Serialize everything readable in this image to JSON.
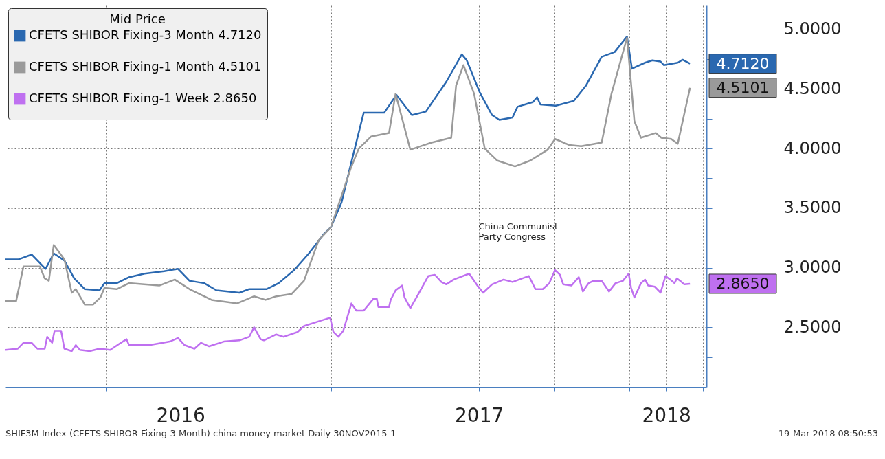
{
  "chart_data": {
    "type": "line",
    "legend_title": "Mid Price",
    "legend": "top left",
    "grid": true,
    "xlim": [
      "2015-11-30",
      "2018-04-05"
    ],
    "xticks": [
      {
        "value": "2016-01-01",
        "label": null
      },
      {
        "value": "2016-04-01",
        "label": null
      },
      {
        "value": "2016-07-01",
        "label": "2016"
      },
      {
        "value": "2016-10-01",
        "label": null
      },
      {
        "value": "2017-01-01",
        "label": null
      },
      {
        "value": "2017-04-01",
        "label": null
      },
      {
        "value": "2017-07-01",
        "label": "2017"
      },
      {
        "value": "2017-10-01",
        "label": null
      },
      {
        "value": "2018-01-01",
        "label": null
      },
      {
        "value": "2018-02-15",
        "label": "2018"
      },
      {
        "value": "2018-04-01",
        "label": null
      }
    ],
    "ylim": [
      2.0,
      5.2
    ],
    "yticks": [
      {
        "value": 2.25,
        "label": null
      },
      {
        "value": 2.5,
        "label": "2.5000"
      },
      {
        "value": 2.75,
        "label": null
      },
      {
        "value": 3.0,
        "label": "3.0000"
      },
      {
        "value": 3.25,
        "label": null
      },
      {
        "value": 3.5,
        "label": "3.5000"
      },
      {
        "value": 3.75,
        "label": null
      },
      {
        "value": 4.0,
        "label": "4.0000"
      },
      {
        "value": 4.25,
        "label": null
      },
      {
        "value": 4.5,
        "label": "4.5000"
      },
      {
        "value": 4.75,
        "label": null
      },
      {
        "value": 5.0,
        "label": "5.0000"
      }
    ],
    "series": [
      {
        "name": "CFETS SHIBOR Fixing-3 Month 4.7120",
        "color": "#2a68b0",
        "value_labels": [
          null,
          null,
          null,
          null,
          null,
          null,
          null,
          null,
          null,
          null,
          null,
          null,
          null,
          null,
          null,
          null,
          null,
          null,
          null,
          null,
          null,
          null,
          null,
          null,
          null,
          null,
          null,
          null,
          null,
          null,
          null,
          null,
          null,
          null,
          null,
          null,
          null,
          null,
          null,
          null,
          null,
          null,
          null,
          null,
          null,
          null,
          null,
          null,
          null,
          null,
          null,
          null,
          null,
          null,
          null,
          null,
          null,
          "4.7120"
        ],
        "x": [
          "2015-11-30",
          "2015-12-16",
          "2016-01-01",
          "2016-01-18",
          "2016-01-28",
          "2016-02-10",
          "2016-02-22",
          "2016-03-06",
          "2016-03-24",
          "2016-03-30",
          "2016-04-14",
          "2016-04-29",
          "2016-05-18",
          "2016-06-11",
          "2016-06-28",
          "2016-07-12",
          "2016-07-30",
          "2016-08-14",
          "2016-09-11",
          "2016-09-23",
          "2016-10-14",
          "2016-10-29",
          "2016-11-17",
          "2016-12-05",
          "2016-12-23",
          "2017-01-01",
          "2017-01-14",
          "2017-01-25",
          "2017-02-10",
          "2017-03-07",
          "2017-03-22",
          "2017-04-10",
          "2017-04-27",
          "2017-05-22",
          "2017-06-10",
          "2017-06-16",
          "2017-07-02",
          "2017-07-17",
          "2017-07-26",
          "2017-08-11",
          "2017-08-17",
          "2017-09-05",
          "2017-09-10",
          "2017-09-14",
          "2017-10-03",
          "2017-10-25",
          "2017-11-09",
          "2017-11-28",
          "2017-12-14",
          "2017-12-29",
          "2018-01-04",
          "2018-01-20",
          "2018-01-29",
          "2018-02-08",
          "2018-02-12",
          "2018-03-01",
          "2018-03-07",
          "2018-03-16"
        ],
        "values": [
          3.07,
          3.07,
          3.11,
          2.99,
          3.12,
          3.06,
          2.91,
          2.82,
          2.81,
          2.87,
          2.87,
          2.92,
          2.95,
          2.97,
          2.99,
          2.89,
          2.87,
          2.81,
          2.79,
          2.82,
          2.82,
          2.87,
          2.98,
          3.12,
          3.28,
          3.34,
          3.55,
          3.86,
          4.3,
          4.3,
          4.45,
          4.28,
          4.31,
          4.56,
          4.79,
          4.74,
          4.47,
          4.28,
          4.24,
          4.26,
          4.35,
          4.39,
          4.43,
          4.37,
          4.36,
          4.4,
          4.53,
          4.77,
          4.81,
          4.94,
          4.67,
          4.72,
          4.74,
          4.73,
          4.7,
          4.72,
          4.745,
          4.712
        ]
      },
      {
        "name": "CFETS SHIBOR Fixing-1 Month 4.5101",
        "color": "#9a9a9a",
        "value_labels": [
          null,
          null,
          null,
          null,
          null,
          null,
          null,
          null,
          null,
          null,
          null,
          null,
          null,
          null,
          null,
          null,
          null,
          null,
          null,
          null,
          null,
          null,
          null,
          null,
          null,
          null,
          null,
          null,
          null,
          null,
          null,
          null,
          null,
          null,
          null,
          null,
          null,
          null,
          null,
          null,
          null,
          null,
          null,
          null,
          null,
          null,
          null,
          null,
          null,
          null,
          null,
          null,
          null,
          null,
          null,
          null,
          null,
          "4.5101"
        ],
        "x": [
          "2015-11-30",
          "2015-12-13",
          "2015-12-22",
          "2016-01-11",
          "2016-01-17",
          "2016-01-22",
          "2016-01-28",
          "2016-02-10",
          "2016-02-19",
          "2016-02-24",
          "2016-03-06",
          "2016-03-16",
          "2016-03-25",
          "2016-03-30",
          "2016-04-14",
          "2016-04-29",
          "2016-06-05",
          "2016-06-24",
          "2016-07-12",
          "2016-08-08",
          "2016-09-08",
          "2016-09-29",
          "2016-10-13",
          "2016-10-26",
          "2016-11-14",
          "2016-11-29",
          "2016-12-17",
          "2017-01-01",
          "2017-01-25",
          "2017-02-04",
          "2017-02-19",
          "2017-03-13",
          "2017-03-21",
          "2017-04-08",
          "2017-04-21",
          "2017-05-04",
          "2017-05-28",
          "2017-06-03",
          "2017-06-12",
          "2017-06-25",
          "2017-07-08",
          "2017-07-23",
          "2017-08-14",
          "2017-09-02",
          "2017-09-23",
          "2017-10-02",
          "2017-10-19",
          "2017-11-03",
          "2017-11-28",
          "2017-12-10",
          "2017-12-29",
          "2018-01-07",
          "2018-01-15",
          "2018-02-02",
          "2018-02-09",
          "2018-02-21",
          "2018-03-01",
          "2018-03-16"
        ],
        "values": [
          2.72,
          2.72,
          3.01,
          3.01,
          2.91,
          2.89,
          3.19,
          3.07,
          2.79,
          2.82,
          2.69,
          2.69,
          2.75,
          2.83,
          2.82,
          2.87,
          2.85,
          2.9,
          2.82,
          2.73,
          2.7,
          2.76,
          2.73,
          2.76,
          2.78,
          2.89,
          3.23,
          3.34,
          3.83,
          4.0,
          4.1,
          4.13,
          4.46,
          3.99,
          4.02,
          4.05,
          4.09,
          4.53,
          4.7,
          4.46,
          4.0,
          3.9,
          3.85,
          3.9,
          3.99,
          4.08,
          4.03,
          4.02,
          4.05,
          4.46,
          4.93,
          4.23,
          4.09,
          4.13,
          4.09,
          4.08,
          4.04,
          4.5101
        ]
      },
      {
        "name": "CFETS SHIBOR Fixing-1 Week  2.8650",
        "color": "#bf70f0",
        "value_labels": [
          null,
          null,
          null,
          null,
          null,
          null,
          null,
          null,
          null,
          null,
          null,
          null,
          null,
          null,
          null,
          null,
          null,
          null,
          null,
          null,
          null,
          null,
          null,
          null,
          null,
          null,
          null,
          null,
          null,
          null,
          null,
          null,
          null,
          null,
          null,
          null,
          null,
          null,
          null,
          null,
          null,
          null,
          null,
          null,
          null,
          null,
          null,
          null,
          null,
          null,
          null,
          null,
          null,
          null,
          null,
          null,
          null,
          null,
          null,
          null,
          null,
          null,
          null,
          null,
          null,
          null,
          null,
          null,
          null,
          null,
          null,
          null,
          null,
          null,
          null,
          null,
          null,
          null,
          null,
          null,
          null,
          null,
          null,
          null,
          null,
          null,
          null,
          null,
          null,
          null,
          null,
          null,
          null,
          null,
          null,
          null,
          "2.8650"
        ],
        "x": [
          "2015-11-30",
          "2015-12-15",
          "2015-12-22",
          "2016-01-01",
          "2016-01-08",
          "2016-01-17",
          "2016-01-20",
          "2016-01-26",
          "2016-01-29",
          "2016-02-06",
          "2016-02-10",
          "2016-02-19",
          "2016-02-24",
          "2016-02-29",
          "2016-03-12",
          "2016-03-24",
          "2016-04-06",
          "2016-04-17",
          "2016-04-26",
          "2016-04-29",
          "2016-05-24",
          "2016-06-18",
          "2016-06-28",
          "2016-07-06",
          "2016-07-18",
          "2016-07-26",
          "2016-08-05",
          "2016-08-23",
          "2016-09-11",
          "2016-09-23",
          "2016-09-29",
          "2016-10-07",
          "2016-10-11",
          "2016-10-26",
          "2016-11-04",
          "2016-11-21",
          "2016-11-29",
          "2016-12-17",
          "2016-12-31",
          "2017-01-04",
          "2017-01-10",
          "2017-01-16",
          "2017-01-26",
          "2017-02-01",
          "2017-02-10",
          "2017-02-22",
          "2017-02-26",
          "2017-02-28",
          "2017-03-13",
          "2017-03-15",
          "2017-03-21",
          "2017-03-29",
          "2017-04-01",
          "2017-04-08",
          "2017-04-18",
          "2017-04-30",
          "2017-05-08",
          "2017-05-16",
          "2017-05-22",
          "2017-05-31",
          "2017-06-19",
          "2017-06-29",
          "2017-07-06",
          "2017-07-17",
          "2017-07-31",
          "2017-08-11",
          "2017-08-31",
          "2017-09-08",
          "2017-09-17",
          "2017-09-25",
          "2017-10-02",
          "2017-10-08",
          "2017-10-12",
          "2017-10-22",
          "2017-10-31",
          "2017-11-05",
          "2017-11-12",
          "2017-11-18",
          "2017-11-28",
          "2017-12-07",
          "2017-12-15",
          "2017-12-24",
          "2017-12-31",
          "2018-01-03",
          "2018-01-07",
          "2018-01-15",
          "2018-01-20",
          "2018-01-24",
          "2018-02-01",
          "2018-02-08",
          "2018-02-14",
          "2018-02-20",
          "2018-02-25",
          "2018-02-28",
          "2018-03-04",
          "2018-03-09",
          "2018-03-16"
        ],
        "values": [
          2.31,
          2.32,
          2.37,
          2.37,
          2.32,
          2.32,
          2.42,
          2.37,
          2.47,
          2.47,
          2.32,
          2.3,
          2.35,
          2.31,
          2.3,
          2.32,
          2.31,
          2.36,
          2.4,
          2.35,
          2.35,
          2.38,
          2.41,
          2.35,
          2.32,
          2.37,
          2.34,
          2.38,
          2.39,
          2.42,
          2.5,
          2.4,
          2.39,
          2.44,
          2.42,
          2.46,
          2.51,
          2.55,
          2.58,
          2.46,
          2.42,
          2.47,
          2.7,
          2.64,
          2.64,
          2.74,
          2.74,
          2.67,
          2.67,
          2.73,
          2.81,
          2.85,
          2.75,
          2.66,
          2.78,
          2.93,
          2.94,
          2.88,
          2.86,
          2.9,
          2.95,
          2.85,
          2.79,
          2.86,
          2.9,
          2.88,
          2.93,
          2.82,
          2.82,
          2.87,
          2.98,
          2.94,
          2.86,
          2.85,
          2.92,
          2.8,
          2.87,
          2.89,
          2.89,
          2.8,
          2.87,
          2.89,
          2.95,
          2.83,
          2.75,
          2.87,
          2.9,
          2.85,
          2.84,
          2.79,
          2.93,
          2.9,
          2.87,
          2.91,
          2.89,
          2.86,
          2.865
        ]
      }
    ],
    "annotations": [
      "China Communist\nParty Congress",
      "SHIF3M Index (CFETS SHIBOR Fixing-3 Month) china money market  Daily 30NOV2015-1",
      "19-Mar-2018 08:50:53"
    ]
  }
}
